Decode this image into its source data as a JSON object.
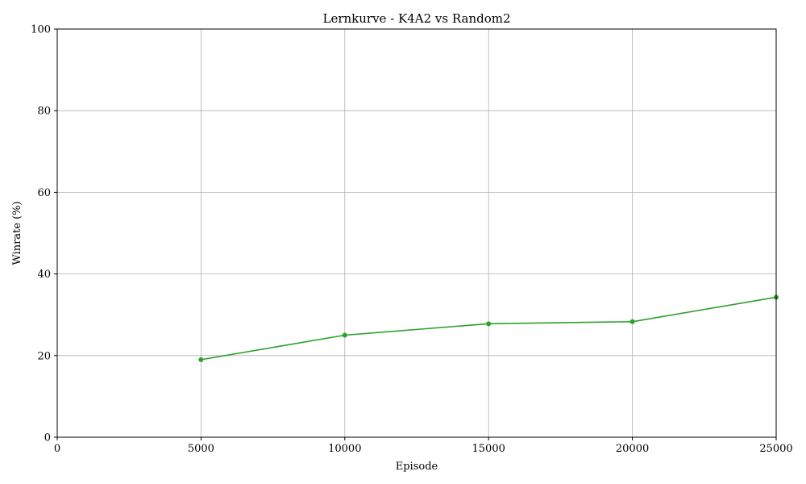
{
  "chart_data": {
    "type": "line",
    "title": "Lernkurve - K4A2 vs Random2",
    "xlabel": "Episode",
    "ylabel": "Winrate (%)",
    "xlim": [
      0,
      25000
    ],
    "ylim": [
      0,
      100
    ],
    "xticks": [
      0,
      5000,
      10000,
      15000,
      20000,
      25000
    ],
    "yticks": [
      0,
      20,
      40,
      60,
      80,
      100
    ],
    "grid": true,
    "series": [
      {
        "color": "#2ca02c",
        "x": [
          5000,
          10000,
          15000,
          20000,
          25000
        ],
        "y": [
          19.0,
          25.0,
          27.8,
          28.3,
          34.3
        ]
      }
    ]
  }
}
